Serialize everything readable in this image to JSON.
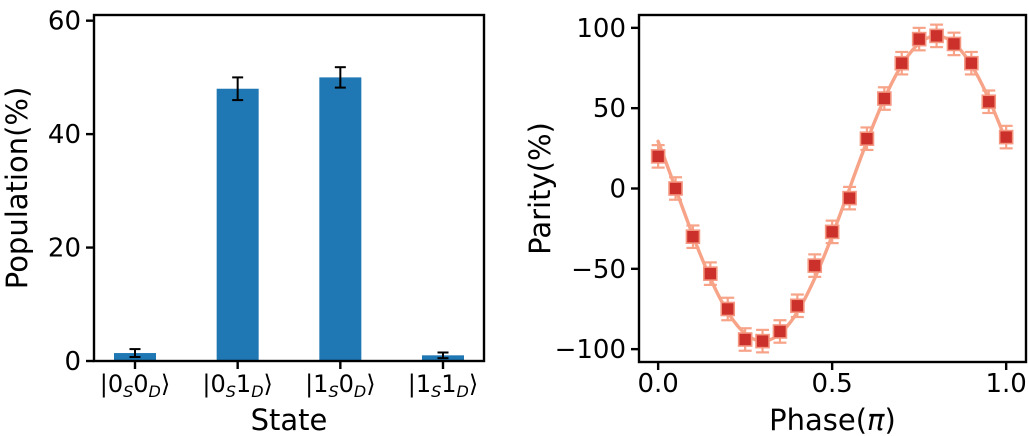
{
  "figure": {
    "background": "#ffffff",
    "text_color": "#000000",
    "axis_color": "#000000"
  },
  "chart_data": [
    {
      "type": "bar",
      "title": "",
      "xlabel": "State",
      "ylabel": "Population(%)",
      "categories": [
        {
          "a": "0",
          "b": "0"
        },
        {
          "a": "0",
          "b": "1"
        },
        {
          "a": "1",
          "b": "0"
        },
        {
          "a": "1",
          "b": "1"
        }
      ],
      "ket": {
        "open": "|",
        "sub_left": "S",
        "sub_right": "D",
        "close": "⟩"
      },
      "category_labels_text": [
        "|0_S0_D⟩",
        "|0_S1_D⟩",
        "|1_S0_D⟩",
        "|1_S1_D⟩"
      ],
      "values": [
        1.4,
        48,
        50,
        1.0
      ],
      "errors": [
        0.7,
        2.0,
        1.8,
        0.5
      ],
      "yticks": [
        0,
        20,
        40,
        60
      ],
      "ylim": [
        0,
        61
      ],
      "grid": false,
      "legend": null,
      "bar_color": "#1f77b4",
      "error_color": "#000000"
    },
    {
      "type": "scatter",
      "title": "",
      "xlabel": {
        "pre": "Phase(",
        "symbol": "π",
        "post": ")"
      },
      "ylabel": "Parity(%)",
      "x": [
        0,
        0.05,
        0.1,
        0.15,
        0.2,
        0.25,
        0.3,
        0.35,
        0.4,
        0.45,
        0.5,
        0.55,
        0.6,
        0.65,
        0.7,
        0.75,
        0.8,
        0.85,
        0.9,
        0.95,
        1.0
      ],
      "y": [
        20,
        0,
        -30,
        -53,
        -75,
        -94,
        -95,
        -89,
        -73,
        -48,
        -27,
        -6,
        31,
        56,
        78,
        93,
        95,
        90,
        78,
        54,
        32
      ],
      "yerr": 7,
      "fit": {
        "type": "sine",
        "amplitude": -95,
        "period": 1.0,
        "x0": 0.05
      },
      "xticks": [
        0,
        0.5,
        1
      ],
      "xtick_labels": [
        "0.0",
        "0.5",
        "1.0"
      ],
      "yticks": [
        -100,
        -50,
        0,
        50,
        100
      ],
      "xlim": [
        -0.055,
        1.057
      ],
      "ylim": [
        -108,
        108
      ],
      "grid": false,
      "legend": null,
      "marker": "square",
      "marker_color": "#cb302b",
      "marker_edge_color": "#f49680",
      "line_color": "#f7a388",
      "error_color": "#f7a388"
    }
  ]
}
